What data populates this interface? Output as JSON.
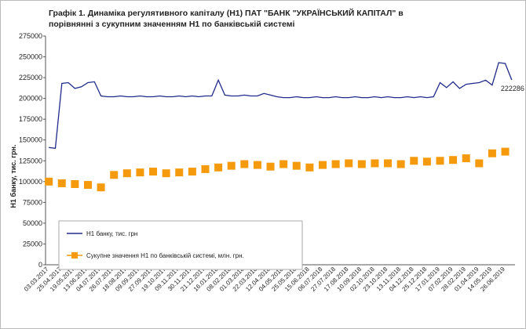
{
  "chart_data": {
    "type": "line",
    "title": "Графік 1. Динаміка регулятивного капіталу (Н1) ПАТ \"БАНК \"УКРАЇНСЬКИЙ КАПІТАЛ\" в",
    "subtitle": "порівнянні з сукупним значенням Н1 по банківській системі",
    "y_label": "Н1 банку, тис. грн.",
    "categories": [
      "03.03.2017",
      null,
      "25.04.2017",
      null,
      "19.05.2017",
      null,
      "13.06.2017",
      null,
      "04.07.2017",
      null,
      "26.07.2017",
      null,
      "18.08.2017",
      null,
      "09.09.2017",
      null,
      "27.09.2017",
      null,
      "19.10.2017",
      null,
      "09.11.2017",
      null,
      "30.11.2017",
      null,
      "21.12.2017",
      null,
      "16.01.2018",
      null,
      "08.02.2018",
      null,
      "01.03.2018",
      null,
      "22.03.2018",
      null,
      "12.04.2018",
      null,
      "04.05.2018",
      null,
      "25.05.2018",
      null,
      "15.06.2018",
      null,
      "06.07.2018",
      null,
      "27.07.2018",
      null,
      "17.08.2018",
      null,
      "10.09.2018",
      null,
      "02.10.2018",
      null,
      "23.10.2018",
      null,
      "13.11.2018",
      null,
      "04.12.2018",
      null,
      "25.12.2018",
      null,
      "17.01.2019",
      null,
      "07.02.2019",
      null,
      "28.02.2019",
      null,
      "01.04.2019",
      null,
      "14.05.2019",
      null,
      "26.06.2019",
      null
    ],
    "series": [
      {
        "name": "Н1 банку, тис. грн",
        "color": "#1f2a8a",
        "style": "line",
        "values": [
          141000,
          140000,
          218000,
          219000,
          212000,
          214000,
          219000,
          220000,
          203000,
          202000,
          202000,
          203000,
          202000,
          202000,
          203000,
          202000,
          202000,
          203000,
          202000,
          202000,
          203000,
          202000,
          203000,
          202000,
          203000,
          203000,
          222000,
          204000,
          203000,
          203000,
          204000,
          203000,
          203000,
          206000,
          204000,
          202000,
          201000,
          201000,
          202000,
          201000,
          201000,
          202000,
          201000,
          201000,
          202000,
          201000,
          201000,
          202000,
          201000,
          201000,
          202000,
          201000,
          202000,
          201000,
          201000,
          202000,
          201000,
          202000,
          201000,
          202000,
          219000,
          213000,
          220000,
          212000,
          217000,
          218000,
          219000,
          222000,
          216000,
          243000,
          242000,
          222286
        ],
        "value_labels": [
          null,
          null,
          null,
          null,
          null,
          null,
          null,
          null,
          null,
          null,
          null,
          null,
          null,
          null,
          null,
          null,
          null,
          null,
          null,
          null,
          null,
          null,
          null,
          null,
          null,
          null,
          null,
          null,
          null,
          null,
          null,
          null,
          null,
          null,
          null,
          null,
          null,
          null,
          null,
          null,
          null,
          null,
          null,
          null,
          null,
          null,
          null,
          null,
          null,
          null,
          null,
          null,
          null,
          null,
          null,
          null,
          null,
          null,
          null,
          null,
          null,
          null,
          null,
          null,
          null,
          null,
          null,
          null,
          null,
          null,
          null,
          "222286"
        ]
      },
      {
        "name": "Сукупне значення Н1 по банківській системі, млн. грн.",
        "color": "#f59a0c",
        "style": "markers",
        "values": [
          100000,
          null,
          98000,
          null,
          97000,
          null,
          96000,
          null,
          93000,
          null,
          108000,
          null,
          110000,
          null,
          111000,
          null,
          112000,
          null,
          110000,
          null,
          111000,
          null,
          112000,
          null,
          115000,
          null,
          117000,
          null,
          119000,
          null,
          121000,
          null,
          120000,
          null,
          118000,
          null,
          121000,
          null,
          119000,
          null,
          117000,
          null,
          120000,
          null,
          121000,
          null,
          122000,
          null,
          121000,
          null,
          122000,
          null,
          122000,
          null,
          121000,
          null,
          125000,
          null,
          124000,
          null,
          125000,
          null,
          126000,
          null,
          128000,
          null,
          122000,
          null,
          134000,
          null,
          136000,
          null
        ]
      }
    ],
    "ylim": [
      0,
      275000
    ],
    "yticks": [
      0,
      25000,
      50000,
      75000,
      100000,
      125000,
      150000,
      175000,
      200000,
      225000,
      250000,
      275000
    ]
  }
}
